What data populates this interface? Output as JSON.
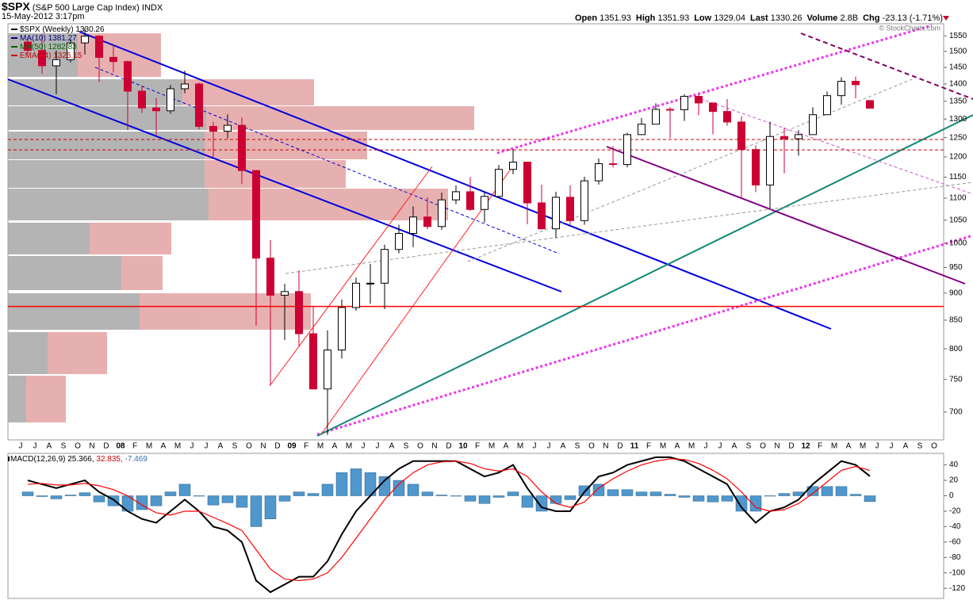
{
  "header": {
    "symbol": "$SPX",
    "name": "(S&P 500 Large Cap Index)",
    "exchange": "INDX",
    "date": "15-May-2012 3:17pm",
    "quote": [
      {
        "label": "Open",
        "value": 1351.93
      },
      {
        "label": "High",
        "value": 1351.93
      },
      {
        "label": "Low",
        "value": 1329.04
      },
      {
        "label": "Last",
        "value": 1330.26
      },
      {
        "label": "Volume",
        "value": "2.8B"
      },
      {
        "label": "Chg",
        "value": "-23.13 (-1.71%)"
      }
    ],
    "credit": "© StockCharts.com"
  },
  "chart_data": [
    {
      "type": "candlestick",
      "log_scale": true,
      "categories": [
        "J",
        "J",
        "A",
        "S",
        "O",
        "N",
        "D",
        "08",
        "F",
        "M",
        "A",
        "M",
        "J",
        "J",
        "A",
        "S",
        "O",
        "N",
        "D",
        "09",
        "F",
        "M",
        "A",
        "M",
        "J",
        "J",
        "A",
        "S",
        "O",
        "N",
        "D",
        "10",
        "F",
        "M",
        "A",
        "M",
        "J",
        "J",
        "A",
        "S",
        "O",
        "N",
        "D",
        "11",
        "F",
        "M",
        "A",
        "M",
        "J",
        "J",
        "A",
        "S",
        "O",
        "N",
        "D",
        "12",
        "F",
        "M",
        "A",
        "M",
        "J",
        "J",
        "A",
        "S",
        "O"
      ],
      "open": [
        1530,
        1503,
        1455,
        1474,
        1527,
        1549,
        1481,
        1468,
        1379,
        1331,
        1323,
        1386,
        1400,
        1280,
        1267,
        1283,
        1166,
        969,
        896,
        903,
        826,
        735,
        798,
        873,
        919,
        919,
        987,
        1021,
        1057,
        1036,
        1096,
        1115,
        1074,
        1104,
        1169,
        1187,
        1089,
        1031,
        1102,
        1049,
        1141,
        1183,
        1181,
        1258,
        1286,
        1327,
        1326,
        1364,
        1345,
        1321,
        1292,
        1219,
        1131,
        1253,
        1247,
        1258,
        1312,
        1366,
        1408,
        1351.93,
        null,
        null,
        null,
        null,
        null
      ],
      "high": [
        1540,
        1555,
        1503,
        1538,
        1576,
        1552,
        1523,
        1471,
        1396,
        1359,
        1397,
        1440,
        1404,
        1293,
        1313,
        1304,
        1167,
        1007,
        918,
        944,
        875,
        832,
        888,
        930,
        957,
        997,
        1040,
        1081,
        1102,
        1113,
        1130,
        1150,
        1113,
        1180,
        1220,
        1188,
        1132,
        1115,
        1130,
        1151,
        1196,
        1228,
        1263,
        1303,
        1344,
        1333,
        1370,
        1371,
        1346,
        1356,
        1308,
        1230,
        1293,
        1277,
        1270,
        1333,
        1378,
        1420,
        1422,
        1351.93,
        null,
        null,
        null,
        null,
        null
      ],
      "low": [
        1490,
        1430,
        1370,
        1465,
        1490,
        1406,
        1435,
        1270,
        1317,
        1257,
        1315,
        1373,
        1272,
        1200,
        1248,
        1133,
        840,
        741,
        815,
        805,
        735,
        667,
        784,
        867,
        880,
        870,
        979,
        992,
        1030,
        1029,
        1086,
        1071,
        1045,
        1101,
        1157,
        1041,
        1029,
        1011,
        1040,
        1040,
        1132,
        1174,
        1174,
        1257,
        1286,
        1249,
        1295,
        1311,
        1259,
        1282,
        1101,
        1114,
        1075,
        1159,
        1203,
        1258,
        1312,
        1340,
        1358,
        1329.04,
        null,
        null,
        null,
        null,
        null
      ],
      "close": [
        1503,
        1455,
        1474,
        1527,
        1549,
        1481,
        1468,
        1379,
        1331,
        1323,
        1386,
        1400,
        1280,
        1267,
        1283,
        1166,
        969,
        896,
        903,
        826,
        735,
        798,
        873,
        919,
        919,
        987,
        1021,
        1057,
        1036,
        1096,
        1115,
        1074,
        1104,
        1169,
        1187,
        1089,
        1031,
        1102,
        1049,
        1141,
        1183,
        1181,
        1258,
        1286,
        1327,
        1326,
        1364,
        1345,
        1321,
        1292,
        1219,
        1131,
        1253,
        1247,
        1258,
        1312,
        1366,
        1408,
        1398,
        1330.26,
        null,
        null,
        null,
        null,
        null
      ],
      "color_up": "#ffffff",
      "color_down": "#cc0033",
      "ylim": [
        660,
        1590
      ],
      "yticks": [
        700,
        750,
        800,
        850,
        900,
        950,
        1000,
        1050,
        1100,
        1150,
        1200,
        1250,
        1300,
        1350,
        1400,
        1450,
        1500,
        1550
      ],
      "hlines": [
        {
          "value": 875,
          "color": "#ff0000",
          "dash": false
        },
        {
          "value": 1245,
          "color": "#cc0000",
          "dash": true
        },
        {
          "value": 1218,
          "color": "#cc0000",
          "dash": true
        }
      ],
      "legend": [
        {
          "name": "$SPX (Weekly)",
          "value": 1330.26,
          "color": "#000000"
        },
        {
          "name": "MA(10)",
          "value": 1381.27,
          "color": "#000080"
        },
        {
          "name": "MA(50)",
          "value": 1282.83,
          "color": "#006400"
        },
        {
          "name": "EMA(34)",
          "value": 1325.15,
          "color": "#cc0000"
        }
      ]
    },
    {
      "type": "line",
      "title": "MACD(12,26,9)",
      "legend_values": [
        "25.366,",
        "32.835,",
        "-7.469"
      ],
      "legend_colors": [
        "#000000",
        "#cc0000",
        "#3a6fb0"
      ],
      "series": [
        {
          "kind": "bar",
          "color": "#4f97cc",
          "values": [
            5,
            -1,
            -4,
            1,
            4,
            -8,
            -13,
            -20,
            -18,
            -13,
            5,
            15,
            0,
            -12,
            -9,
            -15,
            -40,
            -30,
            -7,
            5,
            3,
            15,
            30,
            35,
            30,
            25,
            20,
            15,
            5,
            1,
            0,
            -7,
            -10,
            -2,
            5,
            -15,
            -20,
            -10,
            -5,
            13,
            15,
            8,
            8,
            5,
            5,
            2,
            -2,
            -7,
            -8,
            -7,
            -20,
            -20,
            0,
            3,
            5,
            12,
            12,
            12,
            2,
            -7.469,
            null,
            null,
            null,
            null,
            null
          ]
        },
        {
          "kind": "line",
          "color": "#000000",
          "values": [
            20,
            15,
            10,
            15,
            20,
            5,
            -5,
            -20,
            -30,
            -35,
            -20,
            -5,
            -20,
            -40,
            -45,
            -60,
            -110,
            -125,
            -115,
            -105,
            -105,
            -85,
            -50,
            -20,
            0,
            20,
            35,
            45,
            45,
            45,
            45,
            35,
            25,
            30,
            40,
            10,
            -15,
            -20,
            -20,
            5,
            25,
            30,
            40,
            45,
            50,
            50,
            45,
            35,
            25,
            15,
            -15,
            -35,
            -20,
            -15,
            -5,
            15,
            30,
            45,
            40,
            25.366,
            null,
            null,
            null,
            null,
            null
          ]
        },
        {
          "kind": "line",
          "color": "#ff0000",
          "values": [
            15,
            16,
            14,
            14,
            16,
            13,
            8,
            0,
            -12,
            -22,
            -25,
            -20,
            -20,
            -28,
            -36,
            -45,
            -70,
            -95,
            -108,
            -110,
            -108,
            -100,
            -80,
            -55,
            -30,
            -5,
            15,
            30,
            40,
            44,
            45,
            42,
            35,
            32,
            35,
            25,
            5,
            -10,
            -15,
            -8,
            10,
            22,
            32,
            40,
            45,
            48,
            47,
            42,
            33,
            22,
            5,
            -15,
            -20,
            -18,
            -10,
            3,
            18,
            33,
            38,
            32.835,
            null,
            null,
            null,
            null,
            null
          ]
        }
      ],
      "ylim": [
        -130,
        55
      ],
      "yticks": [
        40,
        20,
        0,
        -20,
        -40,
        -60,
        -80,
        -100,
        -120
      ]
    }
  ]
}
